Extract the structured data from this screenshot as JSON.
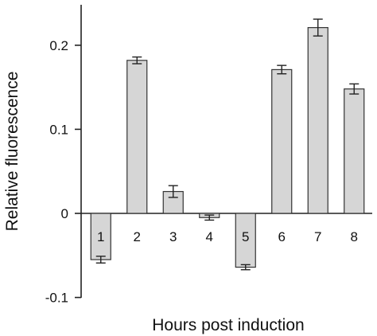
{
  "chart_data": {
    "type": "bar",
    "title": "",
    "xlabel": "Hours post induction",
    "ylabel": "Relative fluorescence",
    "categories": [
      "1",
      "2",
      "3",
      "4",
      "5",
      "6",
      "7",
      "8"
    ],
    "values": [
      -0.055,
      0.182,
      0.026,
      -0.005,
      -0.064,
      0.171,
      0.221,
      0.148
    ],
    "errors": [
      0.004,
      0.004,
      0.007,
      0.003,
      0.003,
      0.005,
      0.01,
      0.006
    ],
    "ylim": [
      -0.1,
      0.25
    ],
    "yticks": [
      -0.1,
      0,
      0.1,
      0.2
    ],
    "ytick_labels": [
      "-0.1",
      "0",
      "0.1",
      "0.2"
    ],
    "grid": false,
    "bar_color": "#d6d6d6",
    "edge_color": "#333333"
  }
}
